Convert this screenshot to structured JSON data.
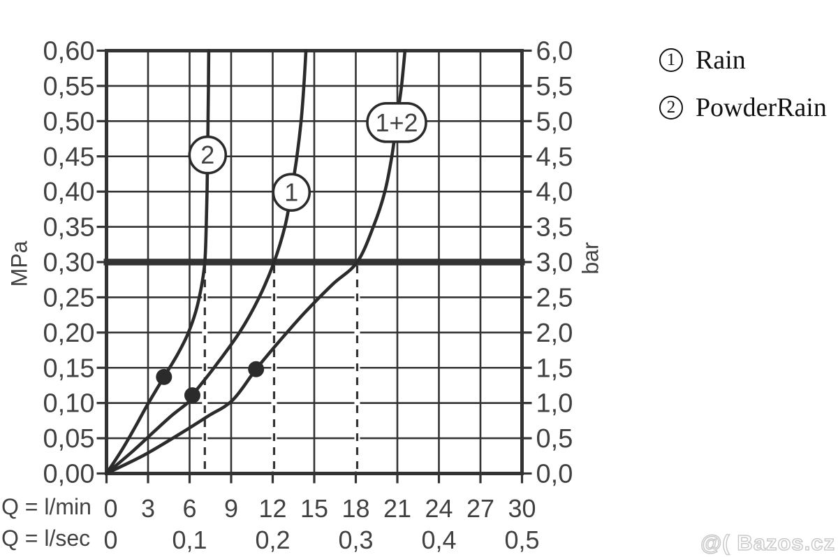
{
  "legend": {
    "items": [
      {
        "number": "1",
        "label": "Rain"
      },
      {
        "number": "2",
        "label": "PowderRain"
      }
    ]
  },
  "watermark": {
    "text": "@( Bazos.cz"
  },
  "chart_data": {
    "type": "line",
    "grid": true,
    "legend_position": "top-right",
    "x": {
      "row1_label": "Q = l/min",
      "row2_label": "Q = l/sec",
      "range": [
        0,
        30
      ],
      "ticks": [
        0,
        3,
        6,
        9,
        12,
        15,
        18,
        21,
        24,
        27,
        30
      ],
      "tick_labels": [
        "0",
        "3",
        "6",
        "9",
        "12",
        "15",
        "18",
        "21",
        "24",
        "27",
        "30"
      ],
      "sec_ticks": [
        {
          "q": 0,
          "label": "0"
        },
        {
          "q": 6,
          "label": "0,1"
        },
        {
          "q": 12,
          "label": "0,2"
        },
        {
          "q": 18,
          "label": "0,3"
        },
        {
          "q": 24,
          "label": "0,4"
        },
        {
          "q": 30,
          "label": "0,5"
        }
      ]
    },
    "y_left": {
      "unit": "MPa",
      "range": [
        0,
        0.6
      ],
      "step": 0.05,
      "tick_labels": [
        "0,00",
        "0,05",
        "0,10",
        "0,15",
        "0,20",
        "0,25",
        "0,30",
        "0,35",
        "0,40",
        "0,45",
        "0,50",
        "0,55",
        "0,60"
      ]
    },
    "y_right": {
      "unit": "bar",
      "range": [
        0,
        6
      ],
      "step": 0.5,
      "tick_labels": [
        "0,0",
        "0,5",
        "1,0",
        "1,5",
        "2,0",
        "2,5",
        "3,0",
        "3,5",
        "4,0",
        "4,5",
        "5,0",
        "5,5",
        "6,0"
      ]
    },
    "reference_line": {
      "p_mpa": 0.3,
      "bar": 3.0
    },
    "series": [
      {
        "key": "2",
        "bubble_label": "2",
        "legend_ref": "PowderRain",
        "bubble_shape": "circle",
        "bubble_at": {
          "q": 7.3,
          "p": 0.452
        },
        "dashed_guide_q": 7.1,
        "marker": {
          "q": 4.15,
          "p": 0.137
        },
        "points": [
          [
            0,
            0
          ],
          [
            1.1,
            0.033
          ],
          [
            2.1,
            0.067
          ],
          [
            3.0,
            0.099
          ],
          [
            4.15,
            0.137
          ],
          [
            5.1,
            0.168
          ],
          [
            5.85,
            0.197
          ],
          [
            6.45,
            0.23
          ],
          [
            6.85,
            0.265
          ],
          [
            7.1,
            0.3
          ],
          [
            7.2,
            0.35
          ],
          [
            7.26,
            0.4
          ],
          [
            7.3,
            0.45
          ],
          [
            7.33,
            0.5
          ],
          [
            7.36,
            0.55
          ],
          [
            7.38,
            0.6
          ]
        ]
      },
      {
        "key": "1",
        "bubble_label": "1",
        "legend_ref": "Rain",
        "bubble_shape": "circle",
        "bubble_at": {
          "q": 13.35,
          "p": 0.399
        },
        "dashed_guide_q": 12.1,
        "marker": {
          "q": 6.2,
          "p": 0.111
        },
        "points": [
          [
            0,
            0
          ],
          [
            1.8,
            0.03
          ],
          [
            3.3,
            0.057
          ],
          [
            4.7,
            0.082
          ],
          [
            5.9,
            0.101
          ],
          [
            6.2,
            0.111
          ],
          [
            7.8,
            0.151
          ],
          [
            9.6,
            0.2
          ],
          [
            11.0,
            0.249
          ],
          [
            12.1,
            0.3
          ],
          [
            12.9,
            0.352
          ],
          [
            13.35,
            0.4
          ],
          [
            13.75,
            0.45
          ],
          [
            14.05,
            0.5
          ],
          [
            14.25,
            0.55
          ],
          [
            14.4,
            0.6
          ]
        ]
      },
      {
        "key": "1+2",
        "bubble_label": "1+2",
        "legend_ref": "Rain + PowderRain",
        "bubble_shape": "stadium",
        "bubble_at": {
          "q": 20.95,
          "p": 0.498
        },
        "dashed_guide_q": 18.1,
        "marker": {
          "q": 10.8,
          "p": 0.148
        },
        "points": [
          [
            0,
            0
          ],
          [
            2.7,
            0.026
          ],
          [
            5.2,
            0.055
          ],
          [
            7.3,
            0.081
          ],
          [
            9.1,
            0.104
          ],
          [
            10.8,
            0.148
          ],
          [
            12.5,
            0.188
          ],
          [
            14.3,
            0.228
          ],
          [
            16.3,
            0.268
          ],
          [
            18.1,
            0.3
          ],
          [
            19.3,
            0.352
          ],
          [
            20.1,
            0.4
          ],
          [
            20.6,
            0.45
          ],
          [
            20.95,
            0.5
          ],
          [
            21.3,
            0.55
          ],
          [
            21.55,
            0.6
          ]
        ]
      }
    ]
  }
}
